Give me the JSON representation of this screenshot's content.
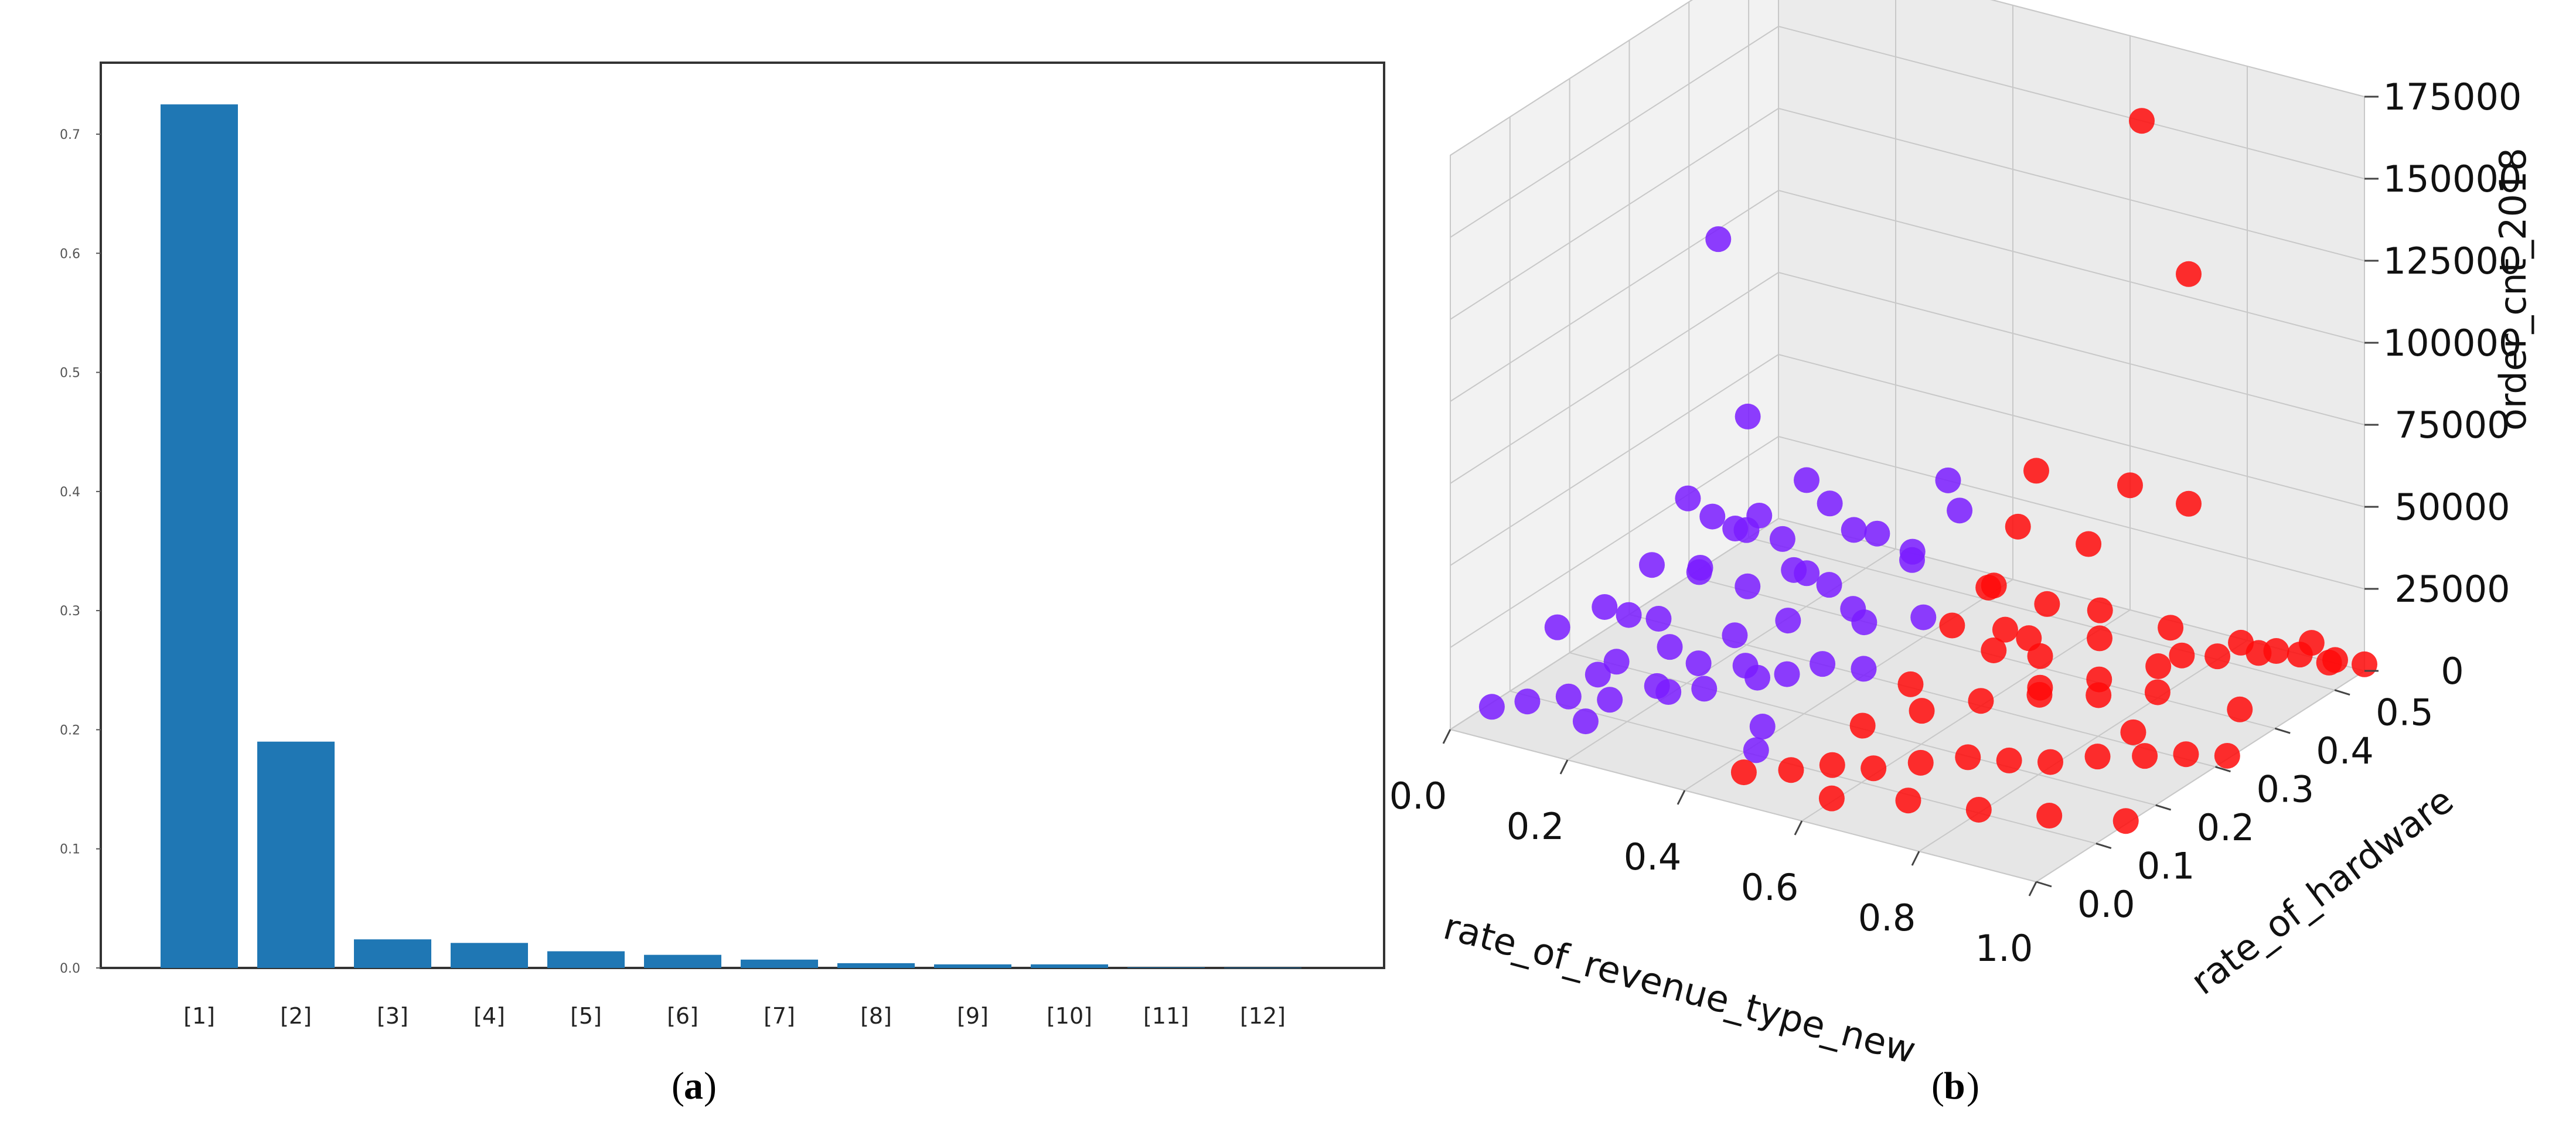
{
  "chart_data": [
    {
      "type": "bar",
      "panel_label": "a",
      "categories": [
        "[1]",
        "[2]",
        "[3]",
        "[4]",
        "[5]",
        "[6]",
        "[7]",
        "[8]",
        "[9]",
        "[10]",
        "[11]",
        "[12]"
      ],
      "values": [
        0.725,
        0.19,
        0.024,
        0.021,
        0.014,
        0.011,
        0.007,
        0.004,
        0.003,
        0.003,
        0.0005,
        0.0003
      ],
      "yticks": [
        "0.0",
        "0.1",
        "0.2",
        "0.3",
        "0.4",
        "0.5",
        "0.6",
        "0.7"
      ],
      "ylim": [
        0,
        0.76
      ],
      "bar_color": "#1f77b4",
      "grid": false
    },
    {
      "type": "scatter",
      "projection": "3d",
      "panel_label": "b",
      "xlabel": "rate_of_revenue_type_new",
      "ylabel": "rate_of_hardware",
      "zlabel": "order_cnt_2018",
      "xticks": [
        "0.0",
        "0.2",
        "0.4",
        "0.6",
        "0.8",
        "1.0"
      ],
      "yticks": [
        "0.0",
        "0.1",
        "0.2",
        "0.3",
        "0.4",
        "0.5"
      ],
      "zticks": [
        "0",
        "25000",
        "50000",
        "75000",
        "100000",
        "125000",
        "150000",
        "175000"
      ],
      "xlim": [
        0,
        1
      ],
      "ylim": [
        0,
        0.55
      ],
      "zlim": [
        0,
        175000
      ],
      "grid": true,
      "series": [
        {
          "color": "#7a1cff",
          "points": [
            [
              0.02,
              0.05,
              2000
            ],
            [
              0.05,
              0.08,
              1500
            ],
            [
              0.1,
              0.1,
              3000
            ],
            [
              0.15,
              0.12,
              2000
            ],
            [
              0.2,
              0.15,
              5000
            ],
            [
              0.25,
              0.18,
              3000
            ],
            [
              0.3,
              0.22,
              4000
            ],
            [
              0.32,
              0.25,
              2500
            ],
            [
              0.35,
              0.28,
              3500
            ],
            [
              0.4,
              0.3,
              2000
            ],
            [
              0.08,
              0.2,
              1000
            ],
            [
              0.12,
              0.25,
              1500
            ],
            [
              0.18,
              0.3,
              2000
            ],
            [
              0.22,
              0.35,
              2500
            ],
            [
              0.28,
              0.4,
              3000
            ],
            [
              0.05,
              0.3,
              1000
            ],
            [
              0.1,
              0.4,
              1500
            ],
            [
              0.15,
              0.45,
              2000
            ],
            [
              0.38,
              0.15,
              1000
            ],
            [
              0.42,
              0.1,
              1500
            ],
            [
              0.03,
              0.15,
              15000
            ],
            [
              0.08,
              0.18,
              20000
            ],
            [
              0.12,
              0.22,
              30000
            ],
            [
              0.16,
              0.26,
              25000
            ],
            [
              0.2,
              0.3,
              35000
            ],
            [
              0.24,
              0.34,
              20000
            ],
            [
              0.28,
              0.36,
              15000
            ],
            [
              0.1,
              0.3,
              40000
            ],
            [
              0.14,
              0.34,
              28000
            ],
            [
              0.18,
              0.38,
              22000
            ],
            [
              0.22,
              0.42,
              30000
            ],
            [
              0.26,
              0.46,
              18000
            ],
            [
              0.3,
              0.48,
              12000
            ],
            [
              0.06,
              0.36,
              10000
            ],
            [
              0.34,
              0.44,
              16000
            ],
            [
              0.36,
              0.5,
              25000
            ],
            [
              0.32,
              0.52,
              30000
            ],
            [
              0.12,
              0.4,
              24000
            ],
            [
              0.16,
              0.44,
              32000
            ],
            [
              0.08,
              0.42,
              50000
            ],
            [
              0.04,
              0.4,
              20000
            ],
            [
              0.2,
              0.48,
              14000
            ],
            [
              0.15,
              0.1,
              12000
            ],
            [
              0.25,
              0.12,
              9000
            ],
            [
              0.05,
              0.25,
              8000
            ],
            [
              0.3,
              0.2,
              10000
            ],
            [
              0.35,
              0.35,
              8000
            ],
            [
              0.4,
              0.4,
              6000
            ],
            [
              0.22,
              0.2,
              7000
            ],
            [
              0.18,
              0.05,
              5000
            ],
            [
              0.05,
              0.4,
              105000
            ]
          ]
        },
        {
          "color": "#ff0a0a",
          "points": [
            [
              0.45,
              0.05,
              2000
            ],
            [
              0.5,
              0.08,
              1500
            ],
            [
              0.55,
              0.1,
              3000
            ],
            [
              0.6,
              0.12,
              2000
            ],
            [
              0.65,
              0.15,
              2500
            ],
            [
              0.7,
              0.18,
              3000
            ],
            [
              0.75,
              0.2,
              2000
            ],
            [
              0.8,
              0.22,
              1500
            ],
            [
              0.85,
              0.25,
              2000
            ],
            [
              0.9,
              0.28,
              1000
            ],
            [
              0.95,
              0.3,
              1500
            ],
            [
              1.0,
              0.32,
              1000
            ],
            [
              0.5,
              0.2,
              1000
            ],
            [
              0.55,
              0.25,
              2000
            ],
            [
              0.6,
              0.3,
              1500
            ],
            [
              0.65,
              0.35,
              2000
            ],
            [
              0.7,
              0.4,
              1000
            ],
            [
              0.75,
              0.45,
              1500
            ],
            [
              0.8,
              0.5,
              1000
            ],
            [
              0.85,
              0.52,
              2000
            ],
            [
              0.9,
              0.54,
              1500
            ],
            [
              0.95,
              0.55,
              1000
            ],
            [
              1.0,
              0.55,
              2000
            ],
            [
              0.6,
              0.05,
              1000
            ],
            [
              0.7,
              0.08,
              1500
            ],
            [
              0.8,
              0.1,
              1000
            ],
            [
              0.9,
              0.12,
              1500
            ],
            [
              1.0,
              0.15,
              1000
            ],
            [
              0.48,
              0.3,
              1000
            ],
            [
              0.52,
              0.4,
              1500
            ],
            [
              0.46,
              0.45,
              12000
            ],
            [
              0.5,
              0.42,
              18000
            ],
            [
              0.55,
              0.46,
              10000
            ],
            [
              0.58,
              0.4,
              8000
            ],
            [
              0.62,
              0.48,
              9000
            ],
            [
              0.66,
              0.44,
              7000
            ],
            [
              0.72,
              0.5,
              6000
            ],
            [
              0.78,
              0.46,
              5000
            ],
            [
              0.84,
              0.5,
              7000
            ],
            [
              0.88,
              0.52,
              4000
            ],
            [
              0.92,
              0.54,
              6000
            ],
            [
              0.96,
              0.53,
              3000
            ],
            [
              0.5,
              0.35,
              14000
            ],
            [
              0.56,
              0.38,
              12000
            ],
            [
              0.64,
              0.36,
              10000
            ],
            [
              0.7,
              0.3,
              8000
            ],
            [
              0.76,
              0.34,
              6000
            ],
            [
              0.82,
              0.38,
              5000
            ],
            [
              0.86,
              0.3,
              4000
            ],
            [
              0.94,
              0.4,
              3000
            ],
            [
              0.44,
              0.55,
              35000
            ],
            [
              0.6,
              0.55,
              38000
            ],
            [
              0.7,
              0.55,
              37000
            ],
            [
              0.58,
              0.5,
              25000
            ],
            [
              0.48,
              0.48,
              28000
            ],
            [
              0.62,
              0.55,
              150000
            ],
            [
              0.7,
              0.55,
              107000
            ]
          ]
        }
      ]
    }
  ],
  "captions": {
    "a": "a",
    "b": "b"
  }
}
